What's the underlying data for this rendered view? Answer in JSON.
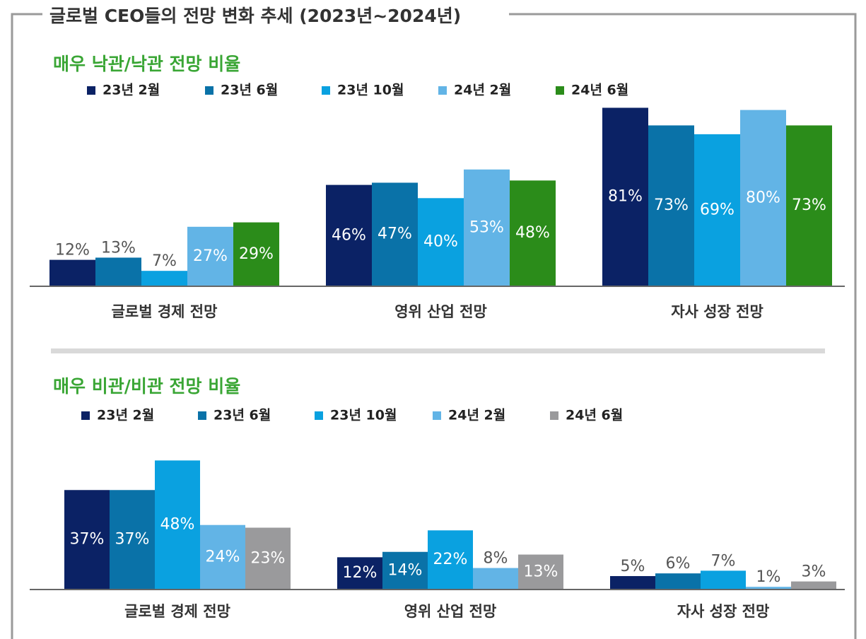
{
  "title": "글로벌 CEO들의 전망 변화 추세 (2023년~2024년)",
  "chart_data": [
    {
      "type": "bar",
      "title": "매우 낙관/낙관 전망 비율",
      "categories": [
        "글로벌 경제 전망",
        "영위 산업 전망",
        "자사 성장 전망"
      ],
      "ylim": [
        0,
        85
      ],
      "series": [
        {
          "name": "23년 2월",
          "color": "#0b2265",
          "values": [
            12,
            46,
            81
          ],
          "value_labels": [
            "12%",
            "46%",
            "81%"
          ]
        },
        {
          "name": "23년 6월",
          "color": "#0a72a8",
          "values": [
            13,
            47,
            73
          ],
          "value_labels": [
            "13%",
            "47%",
            "73%"
          ]
        },
        {
          "name": "23년 10월",
          "color": "#0aa1e0",
          "values": [
            7,
            40,
            69
          ],
          "value_labels": [
            "7%",
            "40%",
            "69%"
          ]
        },
        {
          "name": "24년 2월",
          "color": "#62b4e6",
          "values": [
            27,
            53,
            80
          ],
          "value_labels": [
            "27%",
            "53%",
            "80%"
          ]
        },
        {
          "name": "24년 6월",
          "color": "#2b8c1a",
          "values": [
            29,
            48,
            73
          ],
          "value_labels": [
            "29%",
            "48%",
            "73%"
          ]
        }
      ]
    },
    {
      "type": "bar",
      "title": "매우 비관/비관 전망 비율",
      "categories": [
        "글로벌 경제 전망",
        "영위 산업 전망",
        "자사 성장 전망"
      ],
      "ylim": [
        0,
        51
      ],
      "series": [
        {
          "name": "23년 2월",
          "color": "#0b2265",
          "values": [
            37,
            12,
            5
          ],
          "value_labels": [
            "37%",
            "12%",
            "5%"
          ]
        },
        {
          "name": "23년 6월",
          "color": "#0a72a8",
          "values": [
            37,
            14,
            6
          ],
          "value_labels": [
            "37%",
            "14%",
            "6%"
          ]
        },
        {
          "name": "23년 10월",
          "color": "#0aa1e0",
          "values": [
            48,
            22,
            7
          ],
          "value_labels": [
            "48%",
            "22%",
            "7%"
          ]
        },
        {
          "name": "24년 2월",
          "color": "#62b4e6",
          "values": [
            24,
            8,
            1
          ],
          "value_labels": [
            "24%",
            "8%",
            "1%"
          ]
        },
        {
          "name": "24년 6월",
          "color": "#9a9a9c",
          "values": [
            23,
            13,
            3
          ],
          "value_labels": [
            "23%",
            "13%",
            "3%"
          ]
        }
      ]
    }
  ]
}
